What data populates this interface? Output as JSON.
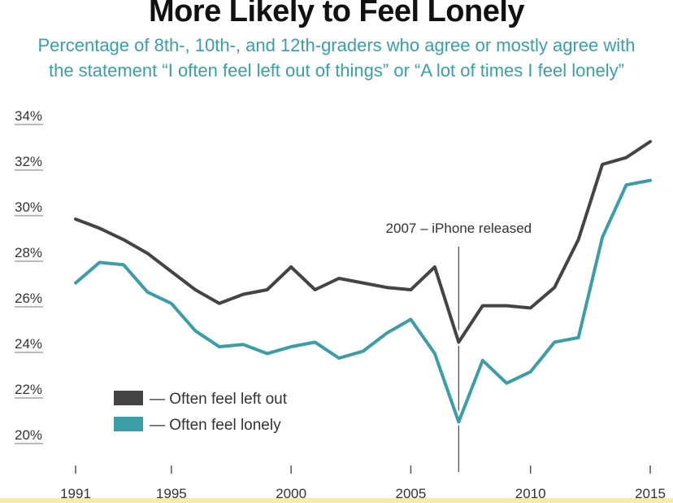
{
  "chart_data": {
    "type": "line",
    "title": "More Likely to Feel Lonely",
    "subtitle_line1": "Percentage of 8th-, 10th-, and 12th-graders who agree or mostly agree with",
    "subtitle_line2": "the statement “I often feel left out of things” or “A lot of times I feel lonely”",
    "xlabel": "",
    "ylabel": "",
    "xlim": [
      1991,
      2015
    ],
    "ylim": [
      20,
      34
    ],
    "x_ticks": [
      1991,
      1995,
      2000,
      2005,
      2010,
      2015
    ],
    "x_tick_labels": [
      "1991",
      "1995",
      "2000",
      "2005",
      "2010",
      "2015"
    ],
    "y_ticks": [
      20,
      22,
      24,
      26,
      28,
      30,
      32,
      34
    ],
    "y_tick_labels": [
      "20%",
      "22%",
      "24%",
      "26%",
      "28%",
      "30%",
      "32%",
      "34%"
    ],
    "grid": false,
    "legend_position": "bottom-left",
    "x": [
      1991,
      1992,
      1993,
      1994,
      1995,
      1996,
      1997,
      1998,
      1999,
      2000,
      2001,
      2002,
      2003,
      2004,
      2005,
      2006,
      2007,
      2008,
      2009,
      2010,
      2011,
      2012,
      2013,
      2014,
      2015
    ],
    "series": [
      {
        "name": "Often feel left out",
        "legend_label": "— Often feel left out",
        "color": "#444444",
        "values": [
          29.6,
          29.2,
          28.7,
          28.1,
          27.3,
          26.5,
          25.9,
          26.3,
          26.5,
          27.5,
          26.5,
          27.0,
          26.8,
          26.6,
          26.5,
          27.5,
          24.2,
          25.8,
          25.8,
          25.7,
          26.6,
          28.7,
          32.0,
          32.3,
          33.0
        ]
      },
      {
        "name": "Often feel lonely",
        "legend_label": "— Often feel lonely",
        "color": "#3b9ea6",
        "values": [
          26.8,
          27.7,
          27.6,
          26.4,
          25.9,
          24.7,
          24.0,
          24.1,
          23.7,
          24.0,
          24.2,
          23.5,
          23.8,
          24.6,
          25.2,
          23.7,
          20.7,
          23.4,
          22.4,
          22.9,
          24.2,
          24.4,
          28.8,
          31.1,
          31.3
        ]
      }
    ],
    "annotations": [
      {
        "x": 2007,
        "text": "2007 – iPhone released"
      }
    ]
  }
}
